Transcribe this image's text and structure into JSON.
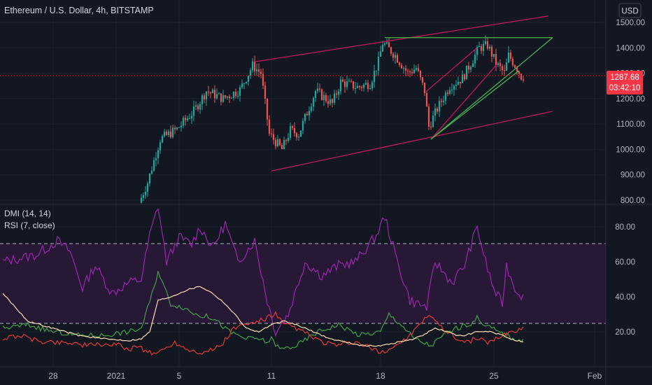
{
  "header": {
    "symbol_title": "Ethereum / U.S. Dollar, 4h, BITSTAMP",
    "currency_button": "USD"
  },
  "price_badge": {
    "price": "1287.68",
    "countdown": "03:42:10"
  },
  "colors": {
    "background": "#131722",
    "up": "#26a69a",
    "down": "#ef5350",
    "channel": "#c2185b",
    "triangle": "#4caf50",
    "rsi": "#9c27b0",
    "rsi_band": "#2a1838",
    "di_plus": "#43a047",
    "di_minus": "#e53935",
    "adx": "#ffe0b2",
    "badge": "#f23645"
  },
  "chart_data": [
    {
      "type": "candlestick",
      "title": "Ethereum / U.S. Dollar, 4h, BITSTAMP",
      "y_ticks": [
        "1500.00",
        "1400.00",
        "1300.00",
        "1200.00",
        "1100.00",
        "1000.00",
        "900.00",
        "800.00"
      ],
      "ylim": [
        800,
        1530
      ],
      "x_ticks": [
        "28",
        "2021",
        "5",
        "11",
        "18",
        "25",
        "Feb"
      ],
      "keypoints": [
        {
          "t": 33,
          "p": 790
        },
        {
          "t": 35,
          "p": 870
        },
        {
          "t": 38,
          "p": 1040
        },
        {
          "t": 42,
          "p": 1080
        },
        {
          "t": 46,
          "p": 1150
        },
        {
          "t": 49,
          "p": 1230
        },
        {
          "t": 53,
          "p": 1200
        },
        {
          "t": 57,
          "p": 1235
        },
        {
          "t": 60,
          "p": 1330
        },
        {
          "t": 62,
          "p": 1300
        },
        {
          "t": 64,
          "p": 1060
        },
        {
          "t": 67,
          "p": 1000
        },
        {
          "t": 69,
          "p": 1075
        },
        {
          "t": 71,
          "p": 1060
        },
        {
          "t": 75,
          "p": 1230
        },
        {
          "t": 79,
          "p": 1180
        },
        {
          "t": 81,
          "p": 1265
        },
        {
          "t": 85,
          "p": 1245
        },
        {
          "t": 88,
          "p": 1260
        },
        {
          "t": 90,
          "p": 1345
        },
        {
          "t": 91,
          "p": 1420
        },
        {
          "t": 94,
          "p": 1370
        },
        {
          "t": 97,
          "p": 1300
        },
        {
          "t": 99,
          "p": 1320
        },
        {
          "t": 101,
          "p": 1230
        },
        {
          "t": 102,
          "p": 1090
        },
        {
          "t": 104,
          "p": 1160
        },
        {
          "t": 107,
          "p": 1250
        },
        {
          "t": 110,
          "p": 1280
        },
        {
          "t": 112,
          "p": 1340
        },
        {
          "t": 114,
          "p": 1400
        },
        {
          "t": 116,
          "p": 1410
        },
        {
          "t": 118,
          "p": 1340
        },
        {
          "t": 120,
          "p": 1300
        },
        {
          "t": 121,
          "p": 1370
        },
        {
          "t": 123,
          "p": 1320
        },
        {
          "t": 124,
          "p": 1288
        }
      ],
      "drawings": {
        "channel_upper": [
          [
            60,
            1345
          ],
          [
            130,
            1525
          ]
        ],
        "channel_lower": [
          [
            64,
            915
          ],
          [
            131,
            1150
          ]
        ],
        "triangle_top": [
          [
            91,
            1440
          ],
          [
            131,
            1440
          ]
        ],
        "triangle_diag": [
          [
            102,
            1040
          ],
          [
            131,
            1440
          ]
        ],
        "rising_wedge_upper": [
          [
            101,
            1230
          ],
          [
            113,
            1400
          ]
        ],
        "rising_wedge_lower": [
          [
            102,
            1040
          ],
          [
            118,
            1340
          ]
        ],
        "breakout_line": [
          [
            102,
            1040
          ],
          [
            123,
            1310
          ]
        ]
      }
    },
    {
      "type": "line",
      "legend": [
        "DMI (14, 14)",
        "RSI (7, close)"
      ],
      "y_ticks": [
        "80.00",
        "60.00",
        "40.00",
        "20.00"
      ],
      "ylim": [
        5,
        90
      ],
      "bands": [
        70,
        25
      ],
      "series": [
        {
          "name": "RSI",
          "color": "#9c27b0",
          "keypoints": [
            [
              0,
              60
            ],
            [
              8,
              64
            ],
            [
              13,
              72
            ],
            [
              16,
              66
            ],
            [
              19,
              45
            ],
            [
              22,
              58
            ],
            [
              26,
              42
            ],
            [
              30,
              48
            ],
            [
              33,
              50
            ],
            [
              35,
              75
            ],
            [
              37,
              92
            ],
            [
              39,
              60
            ],
            [
              42,
              74
            ],
            [
              45,
              70
            ],
            [
              47,
              80
            ],
            [
              50,
              68
            ],
            [
              53,
              82
            ],
            [
              56,
              60
            ],
            [
              60,
              72
            ],
            [
              63,
              38
            ],
            [
              65,
              20
            ],
            [
              68,
              30
            ],
            [
              72,
              60
            ],
            [
              76,
              52
            ],
            [
              80,
              58
            ],
            [
              84,
              60
            ],
            [
              89,
              75
            ],
            [
              91,
              86
            ],
            [
              94,
              60
            ],
            [
              97,
              38
            ],
            [
              99,
              36
            ],
            [
              101,
              34
            ],
            [
              103,
              60
            ],
            [
              107,
              48
            ],
            [
              110,
              58
            ],
            [
              113,
              80
            ],
            [
              115,
              60
            ],
            [
              117,
              44
            ],
            [
              119,
              36
            ],
            [
              120,
              58
            ],
            [
              122,
              45
            ],
            [
              124,
              40
            ]
          ]
        },
        {
          "name": "DI+",
          "color": "#43a047",
          "keypoints": [
            [
              0,
              22
            ],
            [
              6,
              24
            ],
            [
              12,
              20
            ],
            [
              18,
              18
            ],
            [
              24,
              18
            ],
            [
              30,
              20
            ],
            [
              33,
              22
            ],
            [
              36,
              45
            ],
            [
              37,
              55
            ],
            [
              40,
              36
            ],
            [
              43,
              34
            ],
            [
              46,
              30
            ],
            [
              50,
              28
            ],
            [
              54,
              20
            ],
            [
              58,
              16
            ],
            [
              61,
              16
            ],
            [
              63,
              14
            ],
            [
              64,
              16
            ],
            [
              66,
              10
            ],
            [
              70,
              12
            ],
            [
              75,
              20
            ],
            [
              80,
              24
            ],
            [
              85,
              18
            ],
            [
              90,
              20
            ],
            [
              92,
              30
            ],
            [
              95,
              24
            ],
            [
              98,
              16
            ],
            [
              100,
              14
            ],
            [
              102,
              12
            ],
            [
              105,
              18
            ],
            [
              108,
              22
            ],
            [
              111,
              24
            ],
            [
              113,
              28
            ],
            [
              115,
              24
            ],
            [
              118,
              20
            ],
            [
              120,
              18
            ],
            [
              122,
              16
            ],
            [
              124,
              15
            ]
          ]
        },
        {
          "name": "DI-",
          "color": "#e53935",
          "keypoints": [
            [
              0,
              16
            ],
            [
              4,
              18
            ],
            [
              8,
              15
            ],
            [
              12,
              14
            ],
            [
              16,
              14
            ],
            [
              20,
              12
            ],
            [
              24,
              13
            ],
            [
              28,
              12
            ],
            [
              30,
              10
            ],
            [
              32,
              12
            ],
            [
              35,
              8
            ],
            [
              37,
              8
            ],
            [
              41,
              14
            ],
            [
              44,
              10
            ],
            [
              48,
              8
            ],
            [
              52,
              12
            ],
            [
              55,
              22
            ],
            [
              58,
              24
            ],
            [
              61,
              26
            ],
            [
              63,
              28
            ],
            [
              65,
              30
            ],
            [
              67,
              24
            ],
            [
              70,
              22
            ],
            [
              73,
              18
            ],
            [
              76,
              14
            ],
            [
              80,
              12
            ],
            [
              84,
              14
            ],
            [
              88,
              10
            ],
            [
              90,
              8
            ],
            [
              92,
              10
            ],
            [
              95,
              14
            ],
            [
              98,
              20
            ],
            [
              100,
              26
            ],
            [
              102,
              30
            ],
            [
              104,
              24
            ],
            [
              107,
              18
            ],
            [
              110,
              14
            ],
            [
              113,
              16
            ],
            [
              116,
              14
            ],
            [
              119,
              18
            ],
            [
              121,
              20
            ],
            [
              124,
              22
            ]
          ]
        },
        {
          "name": "ADX",
          "color": "#ffe0b2",
          "keypoints": [
            [
              0,
              42
            ],
            [
              6,
              26
            ],
            [
              12,
              22
            ],
            [
              18,
              18
            ],
            [
              24,
              16
            ],
            [
              30,
              15
            ],
            [
              33,
              16
            ],
            [
              35,
              20
            ],
            [
              37,
              38
            ],
            [
              40,
              40
            ],
            [
              44,
              44
            ],
            [
              47,
              46
            ],
            [
              50,
              42
            ],
            [
              53,
              36
            ],
            [
              56,
              28
            ],
            [
              58,
              22
            ],
            [
              61,
              20
            ],
            [
              64,
              24
            ],
            [
              67,
              26
            ],
            [
              70,
              24
            ],
            [
              74,
              20
            ],
            [
              78,
              16
            ],
            [
              82,
              14
            ],
            [
              86,
              12
            ],
            [
              90,
              12
            ],
            [
              94,
              14
            ],
            [
              98,
              16
            ],
            [
              100,
              18
            ],
            [
              103,
              22
            ],
            [
              106,
              20
            ],
            [
              108,
              18
            ],
            [
              110,
              18
            ],
            [
              113,
              20
            ],
            [
              116,
              20
            ],
            [
              119,
              18
            ],
            [
              121,
              16
            ],
            [
              124,
              14
            ]
          ]
        }
      ]
    }
  ]
}
